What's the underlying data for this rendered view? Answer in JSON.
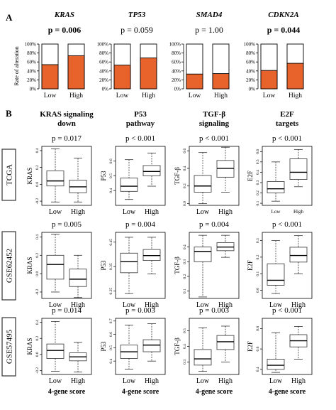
{
  "panels": {
    "a": "A",
    "b": "B"
  },
  "colors": {
    "alteration": "#e8632b",
    "box_fill": "#ffffff",
    "outline": "#333333",
    "cohort_box": "#333333"
  },
  "panel_a_ylabel": "Rate of alteration",
  "panel_b_xlabel": "4-gene score",
  "cohorts": [
    "TCGA",
    "GSE62452",
    "GSE57495"
  ],
  "chart_data": [
    {
      "panel": "A",
      "type": "bar",
      "stacked": true,
      "ylabel": "Rate of alteration",
      "yticks": [
        "0%",
        "20%",
        "40%",
        "60%",
        "80%",
        "100%"
      ],
      "ylim": [
        0,
        100
      ],
      "categories": [
        "Low",
        "High"
      ],
      "genes": [
        {
          "gene": "KRAS",
          "p_text": "p = 0.006",
          "bold": true,
          "altered_pct": [
            54,
            74
          ]
        },
        {
          "gene": "TP53",
          "p_text": "p = 0.059",
          "bold": false,
          "altered_pct": [
            53,
            69
          ]
        },
        {
          "gene": "SMAD4",
          "p_text": "p = 1.00",
          "bold": false,
          "altered_pct": [
            33,
            34
          ]
        },
        {
          "gene": "CDKN2A",
          "p_text": "p = 0.044",
          "bold": true,
          "altered_pct": [
            41,
            57
          ]
        }
      ]
    },
    {
      "panel": "B",
      "type": "box",
      "xlabel": "4-gene score",
      "categories": [
        "Low",
        "High"
      ],
      "columns": [
        {
          "title": [
            "KRAS signaling",
            "down"
          ],
          "ylabel": "KRAS"
        },
        {
          "title": [
            "P53",
            "pathway"
          ],
          "ylabel": "P53"
        },
        {
          "title": [
            "TGF-β",
            "signaling"
          ],
          "ylabel": "TGF-β"
        },
        {
          "title": [
            "E2F",
            "targets"
          ],
          "ylabel": "E2F"
        }
      ],
      "plots": [
        {
          "cohort": "TCGA",
          "signature": "KRAS",
          "p_text": "p = 0.017",
          "ylim": [
            -0.25,
            0.45
          ],
          "yticks": [
            -0.2,
            0.0,
            0.2,
            0.4
          ],
          "boxes": [
            {
              "group": "Low",
              "min": -0.21,
              "q1": -0.02,
              "median": 0.04,
              "q3": 0.16,
              "max": 0.42
            },
            {
              "group": "High",
              "min": -0.21,
              "q1": -0.1,
              "median": -0.03,
              "q3": 0.05,
              "max": 0.31
            }
          ]
        },
        {
          "cohort": "TCGA",
          "signature": "P53",
          "p_text": "p < 0.001",
          "ylim": [
            0.3,
            0.7
          ],
          "yticks": [
            0.4,
            0.5,
            0.6
          ],
          "ytick_every": 1,
          "boxes": [
            {
              "group": "Low",
              "min": 0.34,
              "q1": 0.395,
              "median": 0.43,
              "q3": 0.485,
              "max": 0.61
            },
            {
              "group": "High",
              "min": 0.43,
              "q1": 0.5,
              "median": 0.53,
              "q3": 0.57,
              "max": 0.655
            }
          ]
        },
        {
          "cohort": "TCGA",
          "signature": "TGF-β",
          "p_text": "p < 0.001",
          "ylim": [
            -0.02,
            0.65
          ],
          "yticks": [
            0.0,
            0.2,
            0.4,
            0.6
          ],
          "boxes": [
            {
              "group": "Low",
              "min": 0.0,
              "q1": 0.13,
              "median": 0.2,
              "q3": 0.32,
              "max": 0.58
            },
            {
              "group": "High",
              "min": 0.13,
              "q1": 0.3,
              "median": 0.4,
              "q3": 0.49,
              "max": 0.64
            }
          ]
        },
        {
          "cohort": "TCGA",
          "signature": "E2F",
          "p_text": "p < 0.001",
          "ylim": [
            0.08,
            0.65
          ],
          "yticks": [
            0.1,
            0.2,
            0.3,
            0.4,
            0.5,
            0.6
          ],
          "boxes": [
            {
              "group": "Low",
              "min": 0.12,
              "q1": 0.2,
              "median": 0.24,
              "q3": 0.31,
              "max": 0.5
            },
            {
              "group": "High",
              "min": 0.26,
              "q1": 0.33,
              "median": 0.4,
              "q3": 0.53,
              "max": 0.62
            }
          ]
        },
        {
          "cohort": "GSE62452",
          "signature": "KRAS",
          "p_text": "p = 0.005",
          "ylim": [
            -0.27,
            0.45
          ],
          "yticks": [
            -0.2,
            0.0,
            0.2,
            0.4
          ],
          "boxes": [
            {
              "group": "Low",
              "min": -0.2,
              "q1": -0.06,
              "median": 0.1,
              "q3": 0.2,
              "max": 0.43
            },
            {
              "group": "High",
              "min": -0.26,
              "q1": -0.14,
              "median": -0.06,
              "q3": 0.05,
              "max": 0.2
            }
          ]
        },
        {
          "cohort": "GSE62452",
          "signature": "P53",
          "p_text": "p = 0.004",
          "ylim": [
            0.22,
            0.49
          ],
          "yticks": [
            0.25,
            0.35,
            0.45
          ],
          "boxes": [
            {
              "group": "Low",
              "min": 0.24,
              "q1": 0.325,
              "median": 0.37,
              "q3": 0.405,
              "max": 0.47
            },
            {
              "group": "High",
              "min": 0.32,
              "q1": 0.375,
              "median": 0.395,
              "q3": 0.42,
              "max": 0.47
            }
          ]
        },
        {
          "cohort": "GSE62452",
          "signature": "TGF-β",
          "p_text": "p = 0.004",
          "ylim": [
            0.05,
            0.5
          ],
          "yticks": [
            0.1,
            0.2,
            0.3,
            0.4
          ],
          "boxes": [
            {
              "group": "Low",
              "min": 0.06,
              "q1": 0.3,
              "median": 0.37,
              "q3": 0.4,
              "max": 0.48
            },
            {
              "group": "High",
              "min": 0.33,
              "q1": 0.375,
              "median": 0.4,
              "q3": 0.43,
              "max": 0.48
            }
          ]
        },
        {
          "cohort": "GSE62452",
          "signature": "E2F",
          "p_text": "p < 0.001",
          "ylim": [
            -0.05,
            0.35
          ],
          "yticks": [
            0.0,
            0.1,
            0.2,
            0.3
          ],
          "boxes": [
            {
              "group": "Low",
              "min": -0.02,
              "q1": 0.03,
              "median": 0.06,
              "q3": 0.16,
              "max": 0.3
            },
            {
              "group": "High",
              "min": 0.1,
              "q1": 0.17,
              "median": 0.21,
              "q3": 0.26,
              "max": 0.33
            }
          ]
        },
        {
          "cohort": "GSE57495",
          "signature": "KRAS",
          "p_text": "p = 0.014",
          "ylim": [
            -0.25,
            0.45
          ],
          "yticks": [
            -0.2,
            0.0,
            0.2,
            0.4
          ],
          "boxes": [
            {
              "group": "Low",
              "min": -0.21,
              "q1": -0.05,
              "median": 0.05,
              "q3": 0.13,
              "max": 0.41
            },
            {
              "group": "High",
              "min": -0.22,
              "q1": -0.08,
              "median": -0.03,
              "q3": 0.02,
              "max": 0.15
            }
          ]
        },
        {
          "cohort": "GSE57495",
          "signature": "P53",
          "p_text": "p = 0.003",
          "ylim": [
            0.3,
            0.72
          ],
          "yticks": [
            0.4,
            0.5,
            0.6,
            0.7
          ],
          "boxes": [
            {
              "group": "Low",
              "min": 0.34,
              "q1": 0.42,
              "median": 0.47,
              "q3": 0.52,
              "max": 0.67
            },
            {
              "group": "High",
              "min": 0.4,
              "q1": 0.47,
              "median": 0.52,
              "q3": 0.56,
              "max": 0.68
            }
          ]
        },
        {
          "cohort": "GSE57495",
          "signature": "TGF-β",
          "p_text": "p = 0.003",
          "ylim": [
            0.22,
            0.58
          ],
          "yticks": [
            0.3,
            0.4,
            0.5
          ],
          "boxes": [
            {
              "group": "Low",
              "min": 0.24,
              "q1": 0.28,
              "median": 0.32,
              "q3": 0.38,
              "max": 0.52
            },
            {
              "group": "High",
              "min": 0.3,
              "q1": 0.38,
              "median": 0.43,
              "q3": 0.47,
              "max": 0.53
            }
          ]
        },
        {
          "cohort": "GSE57495",
          "signature": "E2F",
          "p_text": "p < 0.001",
          "ylim": [
            0.35,
            0.9
          ],
          "yticks": [
            0.4,
            0.6,
            0.8
          ],
          "boxes": [
            {
              "group": "Low",
              "min": 0.37,
              "q1": 0.4,
              "median": 0.44,
              "q3": 0.5,
              "max": 0.76
            },
            {
              "group": "High",
              "min": 0.5,
              "q1": 0.62,
              "median": 0.68,
              "q3": 0.74,
              "max": 0.82
            }
          ]
        }
      ]
    }
  ]
}
